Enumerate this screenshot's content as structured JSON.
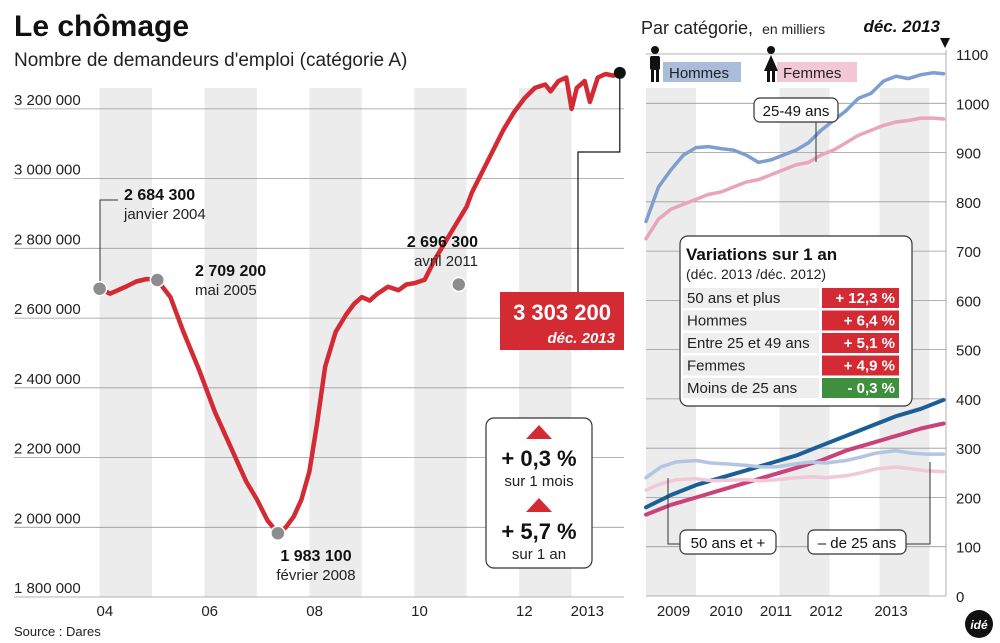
{
  "title": "Le chômage",
  "subtitle": "Nombre de demandeurs d'emploi (catégorie A)",
  "source": "Source : Dares",
  "logo_text": "idé",
  "colors": {
    "red": "#d42a33",
    "hommes_label_bg": "#a9bcd9",
    "femmes_label_bg": "#f3c8d6",
    "hommes_2549": "#7d9ecf",
    "femmes_2549": "#e8a5bd",
    "hommes_50": "#1c5f97",
    "femmes_50": "#c94279",
    "hommes_u25": "#b3c5e3",
    "femmes_u25": "#f2c8d8",
    "stripe": "#ececec",
    "positive": "#d42a33",
    "negative": "#3e8f3e"
  },
  "chart_data": [
    {
      "type": "line",
      "title": "Le chômage",
      "subtitle": "Nombre de demandeurs d'emploi (catégorie A)",
      "x_tick_labels": [
        "04",
        "06",
        "08",
        "10",
        "12",
        "2013"
      ],
      "y_tick_labels": [
        "3 200 000",
        "3 000 000",
        "2 800 000",
        "2 600 000",
        "2 400 000",
        "2 200 000",
        "2 000 000",
        "1 800 000"
      ],
      "ylim": [
        1800000,
        3300000
      ],
      "xlim": [
        2003.95,
        2014.0
      ],
      "series": [
        {
          "x": [
            2004.0,
            2004.2,
            2004.5,
            2004.7,
            2004.9,
            2005.1,
            2005.35,
            2005.6,
            2005.9,
            2006.2,
            2006.5,
            2006.8,
            2007.0,
            2007.2,
            2007.4,
            2007.55,
            2007.7,
            2007.85,
            2008.0,
            2008.15,
            2008.3,
            2008.5,
            2008.7,
            2008.85,
            2009.0,
            2009.15,
            2009.3,
            2009.5,
            2009.7,
            2009.85,
            2010.0,
            2010.2,
            2010.4,
            2010.6,
            2010.8,
            2011.0,
            2011.1,
            2011.3,
            2011.5,
            2011.7,
            2011.9,
            2012.1,
            2012.3,
            2012.5,
            2012.6,
            2012.75,
            2012.9,
            2013.0,
            2013.1,
            2013.25,
            2013.35,
            2013.5,
            2013.65,
            2013.8,
            2013.92
          ],
          "y": [
            2684300,
            2670000,
            2690000,
            2705000,
            2712000,
            2709200,
            2660000,
            2560000,
            2450000,
            2330000,
            2230000,
            2130000,
            2080000,
            2020000,
            1983100,
            2000000,
            2030000,
            2080000,
            2160000,
            2300000,
            2460000,
            2560000,
            2610000,
            2640000,
            2660000,
            2650000,
            2670000,
            2690000,
            2680000,
            2696300,
            2700000,
            2710000,
            2770000,
            2820000,
            2870000,
            2920000,
            2960000,
            3020000,
            3080000,
            3140000,
            3190000,
            3230000,
            3260000,
            3270000,
            3250000,
            3280000,
            3290000,
            3200000,
            3260000,
            3280000,
            3220000,
            3290000,
            3300000,
            3295000,
            3303200
          ]
        }
      ],
      "annotations": [
        {
          "value": "2 684 300",
          "label": "janvier 2004"
        },
        {
          "value": "2 709 200",
          "label": "mai 2005"
        },
        {
          "value": "1 983 100",
          "label": "février 2008"
        },
        {
          "value": "2 696 300",
          "label": "avril 2011"
        }
      ],
      "highlight": {
        "value": "3 303 200",
        "label": "déc. 2013"
      },
      "change_box": [
        {
          "value": "+ 0,3 %",
          "label": "sur 1 mois"
        },
        {
          "value": "+ 5,7 %",
          "label": "sur 1 an"
        }
      ]
    },
    {
      "type": "line",
      "title": "Par catégorie,",
      "title_unit": "en milliers",
      "date_label": "déc. 2013",
      "x_tick_labels": [
        "2009",
        "2010",
        "2011",
        "2012",
        "2013"
      ],
      "y_tick_labels": [
        "1100",
        "1000",
        "900",
        "800",
        "700",
        "600",
        "500",
        "400",
        "300",
        "200",
        "100",
        "0"
      ],
      "ylim": [
        0,
        1100
      ],
      "xlim": [
        2008.0,
        2014.0
      ],
      "legend": [
        "Hommes",
        "Femmes"
      ],
      "series": [
        {
          "name": "Hommes",
          "group": "25-49 ans",
          "x": [
            2008.0,
            2008.25,
            2008.5,
            2008.75,
            2009.0,
            2009.25,
            2009.5,
            2009.75,
            2010.0,
            2010.25,
            2010.5,
            2010.75,
            2011.0,
            2011.25,
            2011.5,
            2011.75,
            2012.0,
            2012.25,
            2012.5,
            2012.75,
            2013.0,
            2013.25,
            2013.5,
            2013.75,
            2013.95
          ],
          "y": [
            760,
            830,
            865,
            895,
            910,
            912,
            908,
            905,
            895,
            880,
            885,
            895,
            905,
            920,
            945,
            965,
            985,
            1010,
            1020,
            1045,
            1055,
            1050,
            1058,
            1062,
            1060
          ]
        },
        {
          "name": "Femmes",
          "group": "25-49 ans",
          "x": [
            2008.0,
            2008.25,
            2008.5,
            2008.75,
            2009.0,
            2009.25,
            2009.5,
            2009.75,
            2010.0,
            2010.25,
            2010.5,
            2010.75,
            2011.0,
            2011.25,
            2011.5,
            2011.75,
            2012.0,
            2012.25,
            2012.5,
            2012.75,
            2013.0,
            2013.25,
            2013.5,
            2013.75,
            2013.95
          ],
          "y": [
            725,
            765,
            785,
            795,
            805,
            815,
            820,
            830,
            840,
            845,
            855,
            865,
            875,
            880,
            895,
            905,
            920,
            935,
            945,
            955,
            962,
            965,
            970,
            970,
            968
          ]
        },
        {
          "name": "Hommes",
          "group": "50 ans et plus",
          "x": [
            2008.0,
            2008.5,
            2009.0,
            2009.5,
            2010.0,
            2010.5,
            2011.0,
            2011.5,
            2012.0,
            2012.5,
            2013.0,
            2013.5,
            2013.95
          ],
          "y": [
            180,
            205,
            225,
            240,
            255,
            270,
            285,
            305,
            325,
            345,
            365,
            380,
            398
          ]
        },
        {
          "name": "Femmes",
          "group": "50 ans et plus",
          "x": [
            2008.0,
            2008.5,
            2009.0,
            2009.5,
            2010.0,
            2010.5,
            2011.0,
            2011.5,
            2012.0,
            2012.5,
            2013.0,
            2013.5,
            2013.95
          ],
          "y": [
            165,
            185,
            200,
            215,
            230,
            245,
            260,
            275,
            295,
            310,
            325,
            340,
            350
          ]
        },
        {
          "name": "Hommes",
          "group": "Moins de 25 ans",
          "x": [
            2008.0,
            2008.3,
            2008.6,
            2009.0,
            2009.3,
            2009.6,
            2010.0,
            2010.3,
            2010.6,
            2011.0,
            2011.3,
            2011.6,
            2012.0,
            2012.3,
            2012.6,
            2013.0,
            2013.3,
            2013.6,
            2013.95
          ],
          "y": [
            240,
            262,
            272,
            275,
            270,
            268,
            265,
            262,
            262,
            268,
            272,
            270,
            275,
            282,
            290,
            295,
            290,
            288,
            288
          ]
        },
        {
          "name": "Femmes",
          "group": "Moins de 25 ans",
          "x": [
            2008.0,
            2008.3,
            2008.6,
            2009.0,
            2009.3,
            2009.6,
            2010.0,
            2010.3,
            2010.6,
            2011.0,
            2011.3,
            2011.6,
            2012.0,
            2012.3,
            2012.6,
            2013.0,
            2013.3,
            2013.6,
            2013.95
          ],
          "y": [
            215,
            228,
            236,
            238,
            234,
            235,
            236,
            234,
            236,
            240,
            242,
            240,
            244,
            250,
            258,
            262,
            258,
            254,
            252
          ]
        }
      ],
      "group_labels": [
        "25-49 ans",
        "50 ans et +",
        "– de 25 ans"
      ],
      "variations": {
        "title": "Variations sur 1 an",
        "period": "(déc. 2013 /déc. 2012)",
        "rows": [
          {
            "label": "50 ans et plus",
            "value": "+ 12,3 %",
            "trend": "up"
          },
          {
            "label": "Hommes",
            "value": "+ 6,4 %",
            "trend": "up"
          },
          {
            "label": "Entre 25 et 49 ans",
            "value": "+ 5,1 %",
            "trend": "up"
          },
          {
            "label": "Femmes",
            "value": "+ 4,9 %",
            "trend": "up"
          },
          {
            "label": "Moins de 25 ans",
            "value": "- 0,3 %",
            "trend": "down"
          }
        ]
      }
    }
  ]
}
